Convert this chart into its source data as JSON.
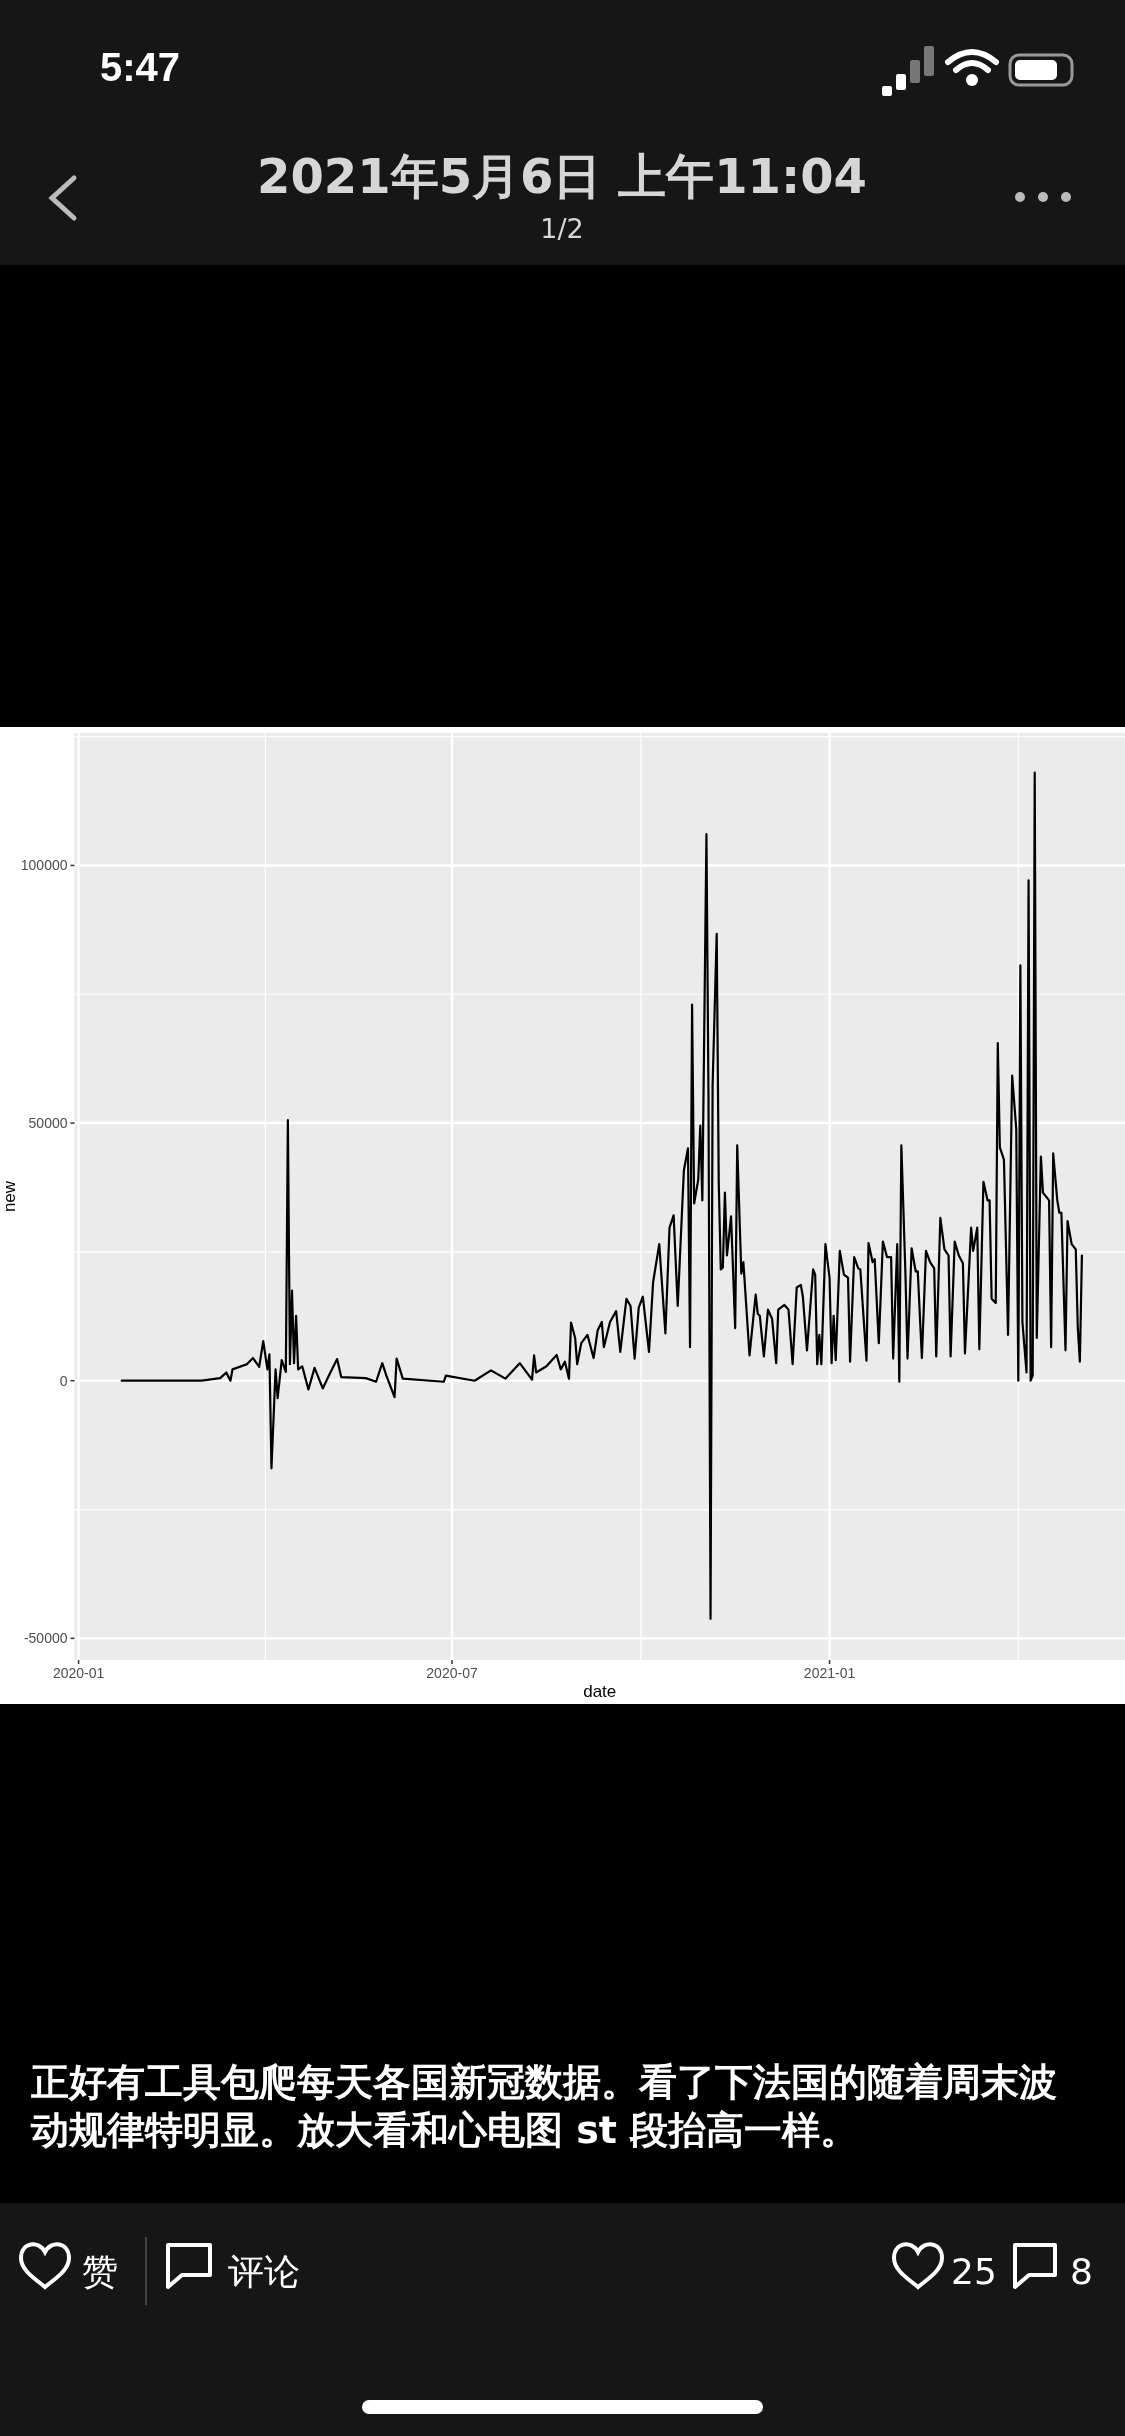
{
  "chart_data": {
    "type": "line",
    "xlabel": "date",
    "ylabel": "new",
    "color": "#000000",
    "grid": true,
    "xlim": [
      "2019-12-30",
      "2021-05-25"
    ],
    "ylim": [
      -54200,
      125700
    ],
    "xticks": [
      {
        "value": "2020-01-01",
        "label": "2020-01"
      },
      {
        "value": "2020-07-01",
        "label": "2020-07"
      },
      {
        "value": "2021-01-01",
        "label": "2021-01"
      }
    ],
    "yticks": [
      -50000,
      0,
      50000,
      100000
    ],
    "x": [
      "2020-01-22",
      "2020-03-01",
      "2020-03-10",
      "2020-03-13",
      "2020-03-15",
      "2020-03-16",
      "2020-03-23",
      "2020-03-26",
      "2020-03-29",
      "2020-03-31",
      "2020-04-02",
      "2020-04-03",
      "2020-04-04",
      "2020-04-06",
      "2020-04-07",
      "2020-04-09",
      "2020-04-11",
      "2020-04-12",
      "2020-04-13",
      "2020-04-14",
      "2020-04-15",
      "2020-04-16",
      "2020-04-17",
      "2020-04-19",
      "2020-04-22",
      "2020-04-25",
      "2020-04-29",
      "2020-05-02",
      "2020-05-06",
      "2020-05-08",
      "2020-05-20",
      "2020-05-25",
      "2020-05-28",
      "2020-05-30",
      "2020-06-03",
      "2020-06-04",
      "2020-06-07",
      "2020-06-27",
      "2020-06-28",
      "2020-07-12",
      "2020-07-20",
      "2020-07-27",
      "2020-08-03",
      "2020-08-09",
      "2020-08-10",
      "2020-08-11",
      "2020-08-16",
      "2020-08-21",
      "2020-08-23",
      "2020-08-25",
      "2020-08-27",
      "2020-08-28",
      "2020-08-30",
      "2020-08-31",
      "2020-09-02",
      "2020-09-05",
      "2020-09-08",
      "2020-09-10",
      "2020-09-12",
      "2020-09-13",
      "2020-09-16",
      "2020-09-19",
      "2020-09-21",
      "2020-09-24",
      "2020-09-26",
      "2020-09-28",
      "2020-09-30",
      "2020-10-02",
      "2020-10-05",
      "2020-10-07",
      "2020-10-10",
      "2020-10-13",
      "2020-10-15",
      "2020-10-17",
      "2020-10-19",
      "2020-10-22",
      "2020-10-24",
      "2020-10-25",
      "2020-10-26",
      "2020-10-27",
      "2020-10-29",
      "2020-10-30",
      "2020-10-31",
      "2020-11-02",
      "2020-11-03",
      "2020-11-04",
      "2020-11-05",
      "2020-11-07",
      "2020-11-08",
      "2020-11-09",
      "2020-11-10",
      "2020-11-11",
      "2020-11-12",
      "2020-11-14",
      "2020-11-16",
      "2020-11-17",
      "2020-11-19",
      "2020-11-20",
      "2020-11-23",
      "2020-11-26",
      "2020-11-27",
      "2020-11-28",
      "2020-11-30",
      "2020-12-02",
      "2020-12-04",
      "2020-12-06",
      "2020-12-07",
      "2020-12-10",
      "2020-12-12",
      "2020-12-14",
      "2020-12-16",
      "2020-12-18",
      "2020-12-19",
      "2020-12-21",
      "2020-12-24",
      "2020-12-25",
      "2020-12-26",
      "2020-12-27",
      "2020-12-28",
      "2020-12-30",
      "2021-01-01",
      "2021-01-02",
      "2021-01-03",
      "2021-01-04",
      "2021-01-06",
      "2021-01-08",
      "2021-01-10",
      "2021-01-11",
      "2021-01-13",
      "2021-01-15",
      "2021-01-16",
      "2021-01-19",
      "2021-01-20",
      "2021-01-22",
      "2021-01-23",
      "2021-01-25",
      "2021-01-27",
      "2021-01-29",
      "2021-01-31",
      "2021-02-01",
      "2021-02-03",
      "2021-02-04",
      "2021-02-05",
      "2021-02-07",
      "2021-02-08",
      "2021-02-10",
      "2021-02-12",
      "2021-02-13",
      "2021-02-15",
      "2021-02-17",
      "2021-02-19",
      "2021-02-21",
      "2021-02-22",
      "2021-02-24",
      "2021-02-26",
      "2021-02-28",
      "2021-03-01",
      "2021-03-03",
      "2021-03-05",
      "2021-03-07",
      "2021-03-08",
      "2021-03-11",
      "2021-03-12",
      "2021-03-14",
      "2021-03-15",
      "2021-03-17",
      "2021-03-19",
      "2021-03-20",
      "2021-03-21",
      "2021-03-23",
      "2021-03-24",
      "2021-03-25",
      "2021-03-27",
      "2021-03-29",
      "2021-03-31",
      "2021-04-02",
      "2021-04-03",
      "2021-04-04",
      "2021-04-05",
      "2021-04-07",
      "2021-04-08",
      "2021-04-09",
      "2021-04-10",
      "2021-04-11",
      "2021-04-12",
      "2021-04-14",
      "2021-04-15",
      "2021-04-18",
      "2021-04-19",
      "2021-04-20",
      "2021-04-22",
      "2021-04-23",
      "2021-04-24",
      "2021-04-26",
      "2021-04-27",
      "2021-04-29",
      "2021-05-01",
      "2021-05-02",
      "2021-05-03",
      "2021-05-04"
    ],
    "values": [
      0,
      0,
      500,
      1600,
      0,
      2200,
      3200,
      4400,
      2700,
      7700,
      2200,
      5100,
      -17000,
      2200,
      -3400,
      4000,
      1700,
      50600,
      3200,
      17500,
      3400,
      12600,
      2200,
      2800,
      -1700,
      2500,
      -1500,
      1000,
      4200,
      700,
      500,
      -200,
      3400,
      1000,
      -3200,
      4300,
      400,
      -200,
      1000,
      0,
      2000,
      400,
      3400,
      200,
      4900,
      1600,
      2800,
      5000,
      2200,
      3700,
      400,
      11300,
      8300,
      3200,
      7300,
      8900,
      4400,
      9800,
      11400,
      6500,
      11400,
      13500,
      5600,
      15900,
      14500,
      4300,
      14200,
      16300,
      5600,
      19100,
      26500,
      9200,
      29700,
      32100,
      14500,
      40800,
      45100,
      6500,
      73000,
      34400,
      39000,
      49500,
      35000,
      106100,
      54900,
      -46200,
      57300,
      86700,
      38300,
      21600,
      22000,
      36500,
      24300,
      31900,
      10200,
      45700,
      20800,
      23000,
      4900,
      16700,
      13000,
      12600,
      4700,
      13800,
      12000,
      3400,
      13800,
      14700,
      13800,
      3200,
      18100,
      18600,
      16300,
      5900,
      21600,
      20600,
      3200,
      8900,
      3200,
      26500,
      20000,
      3400,
      12600,
      4000,
      25200,
      20600,
      20000,
      3700,
      24000,
      21800,
      21600,
      3900,
      26700,
      23000,
      23600,
      7300,
      27000,
      24000,
      24000,
      4300,
      26500,
      -200,
      45700,
      20600,
      4300,
      25700,
      21200,
      21200,
      4400,
      25200,
      23000,
      21800,
      4700,
      31600,
      25500,
      24300,
      4700,
      27000,
      24300,
      22800,
      5300,
      29700,
      25200,
      29700,
      6100,
      38600,
      35000,
      35000,
      15900,
      15100,
      65500,
      45300,
      42900,
      8900,
      59200,
      48800,
      0,
      80600,
      11400,
      1600,
      97100,
      0,
      1000,
      118000,
      8300,
      43500,
      36500,
      35000,
      6500,
      44100,
      35000,
      32600,
      32600,
      5900,
      31000,
      26500,
      25500,
      10200,
      3700,
      24300
    ],
    "annotations": [
      "5:47",
      "2021年5月6日 上午11:04",
      "1/2",
      "正好有工具包爬每天各国新冠数据。看了下法国的随着周末波动规律特明显。放大看和心电图 st 段抬高一样。",
      "赞",
      "评论",
      "25",
      "8"
    ]
  }
}
